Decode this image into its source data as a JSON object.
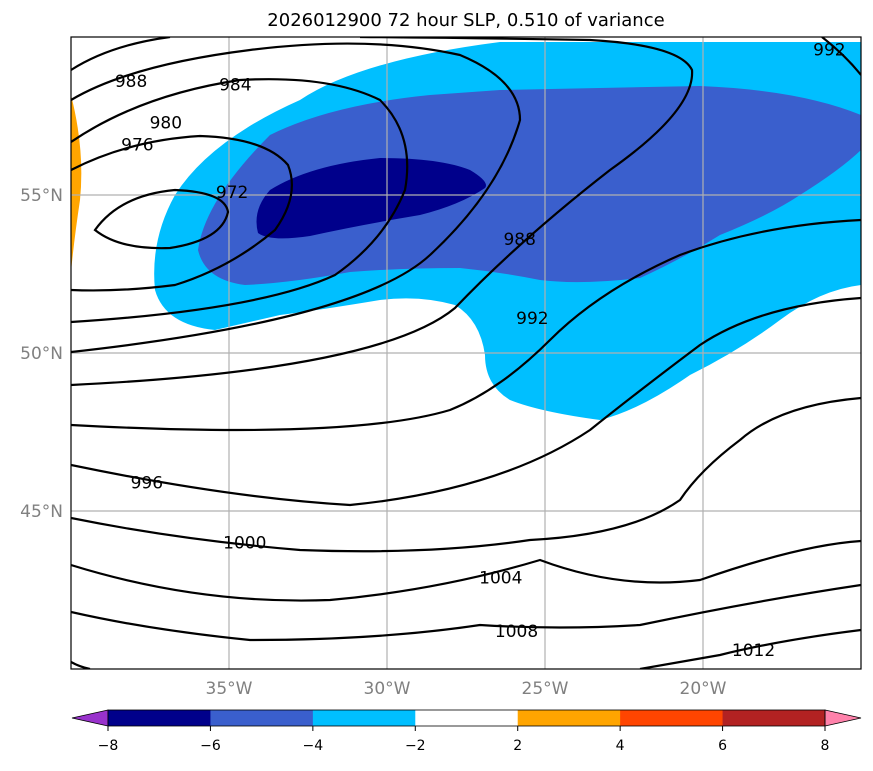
{
  "chart_data": {
    "type": "contour-map",
    "title": "2026012900 72 hour SLP, 0.510 of variance",
    "projection": "lat-lon",
    "xlim_lon": [
      -40,
      -15
    ],
    "ylim_lat": [
      40,
      60
    ],
    "x_ticks": [
      "35°W",
      "30°W",
      "25°W",
      "20°W"
    ],
    "y_ticks": [
      "55°N",
      "50°N",
      "45°N"
    ],
    "grid": true,
    "contour_field": "Sea level pressure (hPa)",
    "contour_levels": [
      972,
      976,
      980,
      984,
      988,
      992,
      996,
      1000,
      1004,
      1008,
      1012
    ],
    "contour_labels": [
      {
        "text": "988",
        "lon": -38.1,
        "lat": 58.6
      },
      {
        "text": "984",
        "lon": -34.8,
        "lat": 58.5
      },
      {
        "text": "980",
        "lon": -37.0,
        "lat": 57.3
      },
      {
        "text": "976",
        "lon": -37.9,
        "lat": 56.6
      },
      {
        "text": "972",
        "lon": -34.9,
        "lat": 55.1
      },
      {
        "text": "992",
        "lon": -16.0,
        "lat": 59.6
      },
      {
        "text": "988",
        "lon": -25.8,
        "lat": 53.6
      },
      {
        "text": "992",
        "lon": -25.4,
        "lat": 51.1
      },
      {
        "text": "996",
        "lon": -37.6,
        "lat": 45.9
      },
      {
        "text": "1000",
        "lon": -34.5,
        "lat": 44.0
      },
      {
        "text": "1004",
        "lon": -26.4,
        "lat": 42.9
      },
      {
        "text": "1008",
        "lon": -25.9,
        "lat": 41.2
      },
      {
        "text": "1012",
        "lon": -18.4,
        "lat": 40.6
      }
    ],
    "fill_field": "SLP anomaly (variance-scaled)",
    "colorbar": {
      "extend": "both",
      "bounds": [
        -8,
        -6,
        -4,
        -2,
        2,
        4,
        6,
        8
      ],
      "tick_labels": [
        "−8",
        "−6",
        "−4",
        "−2",
        "2",
        "4",
        "6",
        "8"
      ],
      "colors": [
        "#9932CC",
        "#00008B",
        "#3A5FCD",
        "#00BFFF",
        "#FFFFFF",
        "#FFA500",
        "#FF4500",
        "#B22222",
        "#FF82AB"
      ]
    }
  }
}
